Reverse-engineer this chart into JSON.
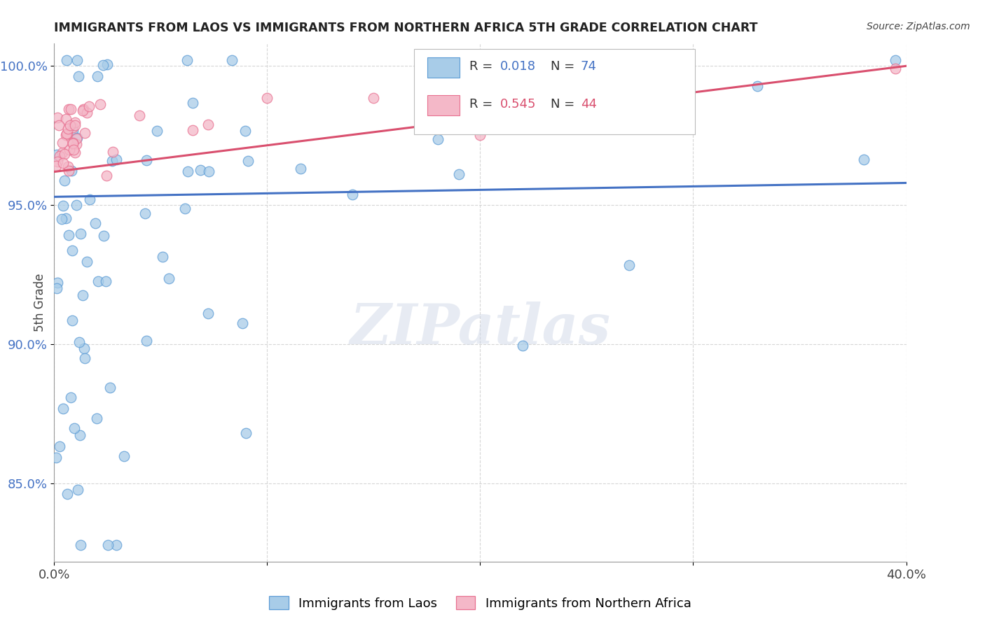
{
  "title": "IMMIGRANTS FROM LAOS VS IMMIGRANTS FROM NORTHERN AFRICA 5TH GRADE CORRELATION CHART",
  "source": "Source: ZipAtlas.com",
  "ylabel": "5th Grade",
  "xlim": [
    0.0,
    0.4
  ],
  "ylim": [
    0.822,
    1.008
  ],
  "xticks": [
    0.0,
    0.1,
    0.2,
    0.3,
    0.4
  ],
  "xtick_labels": [
    "0.0%",
    "",
    "",
    "",
    "40.0%"
  ],
  "yticks": [
    0.85,
    0.9,
    0.95,
    1.0
  ],
  "ytick_labels": [
    "85.0%",
    "90.0%",
    "95.0%",
    "100.0%"
  ],
  "blue_color": "#a8cce8",
  "pink_color": "#f4b8c8",
  "blue_edge_color": "#5b9bd5",
  "pink_edge_color": "#e87090",
  "blue_line_color": "#4472c4",
  "pink_line_color": "#d94f6e",
  "legend_R1": "R = 0.018",
  "legend_N1": "N = 74",
  "legend_R2": "R = 0.545",
  "legend_N2": "N = 44",
  "watermark": "ZIPatlas",
  "blue_line_y0": 0.953,
  "blue_line_y1": 0.958,
  "pink_line_y0": 0.962,
  "pink_line_y1": 1.0
}
